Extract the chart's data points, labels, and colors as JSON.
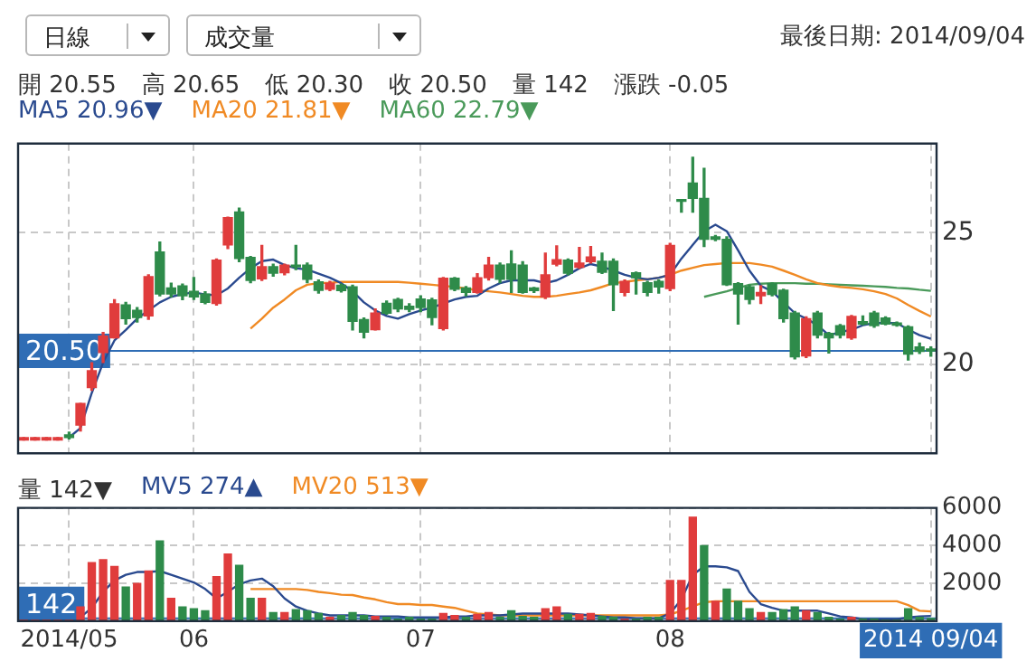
{
  "chart_data": [
    {
      "type": "candlestick",
      "annotations": [
        "日線",
        "成交量",
        "最後日期: 2014/09/04",
        "開 20.55",
        "高 20.65",
        "低 20.30",
        "收 20.50",
        "量 142",
        "漲跌 -0.05"
      ],
      "categories": [
        null,
        null,
        null,
        null,
        null,
        null,
        null,
        null,
        null,
        null,
        null,
        null,
        null,
        null,
        null,
        null,
        null,
        null,
        null,
        null,
        null,
        null,
        null,
        null,
        null,
        null,
        null,
        null,
        null,
        null,
        null,
        null,
        null,
        null,
        null,
        null,
        null,
        null,
        null,
        null,
        null,
        null,
        null,
        null,
        null,
        null,
        null,
        null,
        null,
        null,
        null,
        null,
        null,
        null,
        null,
        null,
        null,
        null,
        null,
        null,
        null,
        null,
        null,
        null,
        null,
        null,
        null,
        null,
        null,
        null,
        null,
        null,
        null,
        null,
        null,
        null,
        null,
        null,
        null,
        null,
        null
      ],
      "tick_labels": "y",
      "ohlc": [
        [
          17.1,
          17.2,
          17.1,
          17.2
        ],
        [
          17.1,
          17.2,
          17.1,
          17.2
        ],
        [
          17.1,
          17.2,
          17.1,
          17.2
        ],
        [
          17.1,
          17.2,
          17.1,
          17.2
        ],
        [
          17.3,
          17.4,
          17.15,
          17.2
        ],
        [
          17.67,
          18.5,
          17.45,
          18.5
        ],
        [
          19.1,
          20.05,
          19.0,
          19.75
        ],
        [
          20.44,
          21.2,
          20.06,
          21.06
        ],
        [
          21.0,
          22.45,
          21.0,
          22.3
        ],
        [
          22.25,
          22.35,
          21.52,
          21.73
        ],
        [
          22.05,
          22.15,
          21.6,
          21.77
        ],
        [
          21.83,
          23.4,
          21.7,
          23.33
        ],
        [
          24.27,
          24.65,
          22.6,
          22.67
        ],
        [
          22.9,
          23.08,
          22.56,
          22.67
        ],
        [
          22.98,
          23.05,
          22.45,
          22.6
        ],
        [
          22.77,
          23.3,
          22.46,
          22.56
        ],
        [
          22.67,
          22.75,
          22.3,
          22.35
        ],
        [
          22.31,
          24.0,
          22.25,
          23.96
        ],
        [
          24.54,
          25.6,
          24.4,
          25.58
        ],
        [
          25.79,
          25.94,
          23.9,
          24.02
        ],
        [
          24.06,
          24.1,
          23.1,
          23.19
        ],
        [
          23.25,
          24.52,
          23.19,
          23.71
        ],
        [
          23.71,
          23.8,
          23.35,
          23.46
        ],
        [
          23.48,
          23.8,
          23.4,
          23.77
        ],
        [
          23.75,
          24.52,
          23.6,
          23.7
        ],
        [
          23.77,
          23.85,
          23.1,
          23.23
        ],
        [
          23.13,
          23.2,
          22.7,
          22.81
        ],
        [
          22.85,
          23.15,
          22.8,
          23.08
        ],
        [
          23.0,
          23.05,
          22.75,
          22.8
        ],
        [
          22.94,
          23.0,
          21.3,
          21.63
        ],
        [
          21.69,
          21.75,
          21.0,
          21.21
        ],
        [
          21.31,
          22.1,
          21.3,
          21.94
        ],
        [
          22.31,
          22.4,
          21.9,
          21.94
        ],
        [
          22.46,
          22.5,
          22.0,
          22.1
        ],
        [
          22.2,
          22.3,
          22.0,
          22.08
        ],
        [
          22.48,
          22.6,
          22.0,
          22.15
        ],
        [
          22.44,
          22.5,
          21.5,
          21.77
        ],
        [
          21.35,
          23.3,
          21.3,
          23.27
        ],
        [
          23.27,
          23.3,
          22.8,
          22.85
        ],
        [
          22.9,
          22.95,
          22.6,
          22.73
        ],
        [
          22.73,
          23.44,
          22.7,
          23.29
        ],
        [
          23.29,
          24.06,
          23.2,
          23.77
        ],
        [
          23.77,
          23.85,
          23.1,
          23.23
        ],
        [
          23.81,
          24.31,
          22.73,
          23.23
        ],
        [
          23.77,
          23.9,
          22.7,
          22.73
        ],
        [
          22.9,
          22.92,
          22.73,
          22.8
        ],
        [
          22.56,
          24.23,
          22.5,
          23.4
        ],
        [
          23.81,
          24.5,
          23.75,
          23.98
        ],
        [
          23.96,
          24.0,
          23.4,
          23.46
        ],
        [
          23.69,
          24.44,
          23.65,
          23.85
        ],
        [
          23.9,
          24.48,
          23.85,
          24.08
        ],
        [
          23.92,
          24.23,
          23.45,
          23.5
        ],
        [
          23.92,
          24.0,
          22.04,
          23.02
        ],
        [
          22.73,
          23.2,
          22.6,
          23.15
        ],
        [
          23.48,
          23.5,
          22.67,
          23.29
        ],
        [
          23.1,
          23.15,
          22.6,
          22.73
        ],
        [
          23.15,
          23.2,
          22.7,
          22.94
        ],
        [
          22.88,
          24.6,
          22.8,
          24.52
        ],
        [
          26.27,
          26.27,
          25.79,
          26.2
        ],
        [
          26.9,
          27.88,
          25.79,
          26.31
        ],
        [
          26.31,
          27.46,
          24.48,
          24.75
        ],
        [
          24.85,
          24.9,
          24.7,
          24.75
        ],
        [
          24.75,
          24.85,
          23.0,
          23.02
        ],
        [
          23.06,
          23.1,
          21.52,
          22.67
        ],
        [
          22.94,
          23.0,
          22.3,
          22.46
        ],
        [
          22.6,
          22.98,
          22.31,
          22.73
        ],
        [
          23.06,
          23.1,
          22.6,
          22.65
        ],
        [
          22.81,
          22.85,
          21.6,
          21.73
        ],
        [
          21.94,
          22.0,
          20.2,
          20.27
        ],
        [
          20.31,
          21.8,
          20.25,
          21.73
        ],
        [
          21.94,
          22.0,
          21.0,
          21.1
        ],
        [
          21.17,
          21.2,
          20.42,
          21.0
        ],
        [
          21.46,
          21.5,
          21.0,
          21.1
        ],
        [
          21.0,
          21.85,
          20.95,
          21.81
        ],
        [
          21.62,
          21.83,
          21.5,
          21.52
        ],
        [
          21.94,
          22.0,
          21.4,
          21.46
        ],
        [
          21.75,
          21.8,
          21.5,
          21.52
        ],
        [
          21.56,
          21.6,
          21.45,
          21.48
        ],
        [
          21.42,
          21.45,
          20.15,
          20.38
        ],
        [
          20.65,
          20.8,
          20.4,
          20.48
        ],
        [
          20.55,
          20.65,
          20.3,
          20.5
        ]
      ],
      "colors": [
        "#e03c3c",
        "#e03c3c",
        "#e03c3c",
        "#e03c3c",
        "#2e8b4a",
        "#e03c3c",
        "#e03c3c",
        "#e03c3c",
        "#e03c3c",
        "#2e8b4a",
        "#2e8b4a",
        "#e03c3c",
        "#2e8b4a",
        "#2e8b4a",
        "#2e8b4a",
        "#2e8b4a",
        "#2e8b4a",
        "#e03c3c",
        "#e03c3c",
        "#2e8b4a",
        "#2e8b4a",
        "#e03c3c",
        "#2e8b4a",
        "#e03c3c",
        "#2e8b4a",
        "#2e8b4a",
        "#2e8b4a",
        "#e03c3c",
        "#2e8b4a",
        "#2e8b4a",
        "#2e8b4a",
        "#e03c3c",
        "#2e8b4a",
        "#2e8b4a",
        "#2e8b4a",
        "#2e8b4a",
        "#2e8b4a",
        "#e03c3c",
        "#2e8b4a",
        "#2e8b4a",
        "#e03c3c",
        "#e03c3c",
        "#2e8b4a",
        "#2e8b4a",
        "#2e8b4a",
        "#2e8b4a",
        "#e03c3c",
        "#e03c3c",
        "#2e8b4a",
        "#e03c3c",
        "#e03c3c",
        "#2e8b4a",
        "#2e8b4a",
        "#e03c3c",
        "#2e8b4a",
        "#2e8b4a",
        "#2e8b4a",
        "#e03c3c",
        "#2e8b4a",
        "#2e8b4a",
        "#2e8b4a",
        "#2e8b4a",
        "#2e8b4a",
        "#2e8b4a",
        "#2e8b4a",
        "#e03c3c",
        "#2e8b4a",
        "#2e8b4a",
        "#2e8b4a",
        "#e03c3c",
        "#2e8b4a",
        "#2e8b4a",
        "#2e8b4a",
        "#e03c3c",
        "#2e8b4a",
        "#2e8b4a",
        "#2e8b4a",
        "#2e8b4a",
        "#2e8b4a",
        "#2e8b4a",
        "#2e8b4a"
      ],
      "series": [
        {
          "name": "MA5 20.96▼",
          "type": "line",
          "color": "#2a4a8f",
          "values": [
            null,
            null,
            null,
            null,
            17.2,
            17.56,
            18.9,
            20.06,
            20.9,
            21.3,
            21.73,
            22.04,
            22.35,
            22.56,
            22.67,
            22.73,
            22.65,
            22.62,
            22.88,
            23.29,
            23.65,
            23.92,
            23.98,
            23.77,
            23.65,
            23.6,
            23.44,
            23.29,
            23.08,
            22.77,
            22.35,
            22.04,
            21.83,
            21.73,
            21.9,
            22.04,
            22.15,
            22.31,
            22.46,
            22.56,
            22.6,
            22.88,
            23.08,
            23.19,
            23.19,
            23.19,
            23.08,
            23.19,
            23.4,
            23.65,
            23.81,
            23.71,
            23.56,
            23.4,
            23.29,
            23.23,
            23.29,
            23.4,
            24.02,
            24.54,
            25.06,
            25.31,
            25.06,
            24.33,
            23.56,
            22.98,
            22.77,
            22.35,
            21.94,
            21.73,
            21.48,
            21.1,
            21.21,
            21.31,
            21.48,
            21.56,
            21.56,
            21.56,
            21.31,
            21.1,
            20.96
          ]
        },
        {
          "name": "MA20 21.81▼",
          "type": "line",
          "color": "#f08a24",
          "values": [
            null,
            null,
            null,
            null,
            null,
            null,
            null,
            null,
            null,
            null,
            null,
            null,
            null,
            null,
            null,
            null,
            null,
            null,
            null,
            null,
            21.35,
            21.73,
            22.15,
            22.46,
            22.81,
            23.02,
            23.08,
            23.1,
            23.13,
            23.13,
            23.13,
            23.13,
            23.13,
            23.13,
            23.1,
            23.06,
            23.02,
            22.98,
            22.94,
            22.88,
            22.81,
            22.77,
            22.73,
            22.67,
            22.6,
            22.56,
            22.56,
            22.6,
            22.67,
            22.73,
            22.81,
            22.94,
            23.08,
            23.13,
            23.19,
            23.23,
            23.29,
            23.4,
            23.56,
            23.67,
            23.77,
            23.81,
            23.85,
            23.85,
            23.85,
            23.79,
            23.71,
            23.56,
            23.4,
            23.23,
            23.08,
            23.0,
            22.94,
            22.9,
            22.85,
            22.77,
            22.67,
            22.5,
            22.25,
            22.02,
            21.81
          ]
        },
        {
          "name": "MA60 22.79▼",
          "type": "line",
          "color": "#4a9a5a",
          "values": [
            null,
            null,
            null,
            null,
            null,
            null,
            null,
            null,
            null,
            null,
            null,
            null,
            null,
            null,
            null,
            null,
            null,
            null,
            null,
            null,
            null,
            null,
            null,
            null,
            null,
            null,
            null,
            null,
            null,
            null,
            null,
            null,
            null,
            null,
            null,
            null,
            null,
            null,
            null,
            null,
            null,
            null,
            null,
            null,
            null,
            null,
            null,
            null,
            null,
            null,
            null,
            null,
            null,
            null,
            null,
            null,
            null,
            null,
            null,
            null,
            22.56,
            22.67,
            22.77,
            22.9,
            23.02,
            23.06,
            23.08,
            23.08,
            23.08,
            23.06,
            23.06,
            23.04,
            23.02,
            23.0,
            22.98,
            22.96,
            22.94,
            22.9,
            22.88,
            22.83,
            22.79
          ]
        }
      ],
      "ylim": [
        16.6,
        28.4
      ],
      "yticks": [
        20,
        25
      ],
      "grid": true,
      "legend": "top left",
      "marker": "none",
      "ref_lines": [
        {
          "axis": "y",
          "value": 20.5,
          "label": "20.50",
          "color": "#2f6db5"
        }
      ]
    },
    {
      "type": "bar",
      "categories": [
        null,
        null,
        null,
        null,
        "2014/05",
        null,
        null,
        null,
        null,
        null,
        null,
        null,
        null,
        null,
        null,
        "06",
        null,
        null,
        null,
        null,
        null,
        null,
        null,
        null,
        null,
        null,
        null,
        null,
        null,
        null,
        null,
        null,
        null,
        null,
        null,
        "07",
        null,
        null,
        null,
        null,
        null,
        null,
        null,
        null,
        null,
        null,
        null,
        null,
        null,
        null,
        null,
        null,
        null,
        null,
        null,
        null,
        null,
        "08",
        null,
        null,
        null,
        null,
        null,
        null,
        null,
        null,
        null,
        null,
        null,
        null,
        null,
        null,
        null,
        null,
        null,
        null,
        null,
        null,
        null,
        null,
        "2014 09/04"
      ],
      "series": [
        {
          "name": "量 142▼",
          "type": "bar",
          "values": [
            50,
            50,
            50,
            50,
            50,
            750,
            3100,
            3250,
            2900,
            1800,
            2000,
            2650,
            4250,
            1200,
            750,
            650,
            550,
            2350,
            3550,
            2950,
            1200,
            1200,
            450,
            450,
            600,
            550,
            400,
            200,
            300,
            450,
            300,
            250,
            200,
            100,
            200,
            100,
            100,
            400,
            300,
            200,
            350,
            450,
            200,
            550,
            250,
            200,
            650,
            750,
            350,
            350,
            400,
            250,
            200,
            100,
            100,
            200,
            200,
            2150,
            2150,
            5500,
            4000,
            1050,
            1700,
            1050,
            650,
            450,
            450,
            600,
            750,
            550,
            450,
            200,
            100,
            200,
            100,
            100,
            50,
            50,
            650,
            200,
            142
          ],
          "colors": [
            "#e03c3c",
            "#e03c3c",
            "#e03c3c",
            "#e03c3c",
            "#e03c3c",
            "#e03c3c",
            "#e03c3c",
            "#e03c3c",
            "#e03c3c",
            "#2e8b4a",
            "#e03c3c",
            "#e03c3c",
            "#2e8b4a",
            "#e03c3c",
            "#2e8b4a",
            "#2e8b4a",
            "#2e8b4a",
            "#e03c3c",
            "#e03c3c",
            "#2e8b4a",
            "#2e8b4a",
            "#e03c3c",
            "#2e8b4a",
            "#e03c3c",
            "#2e8b4a",
            "#2e8b4a",
            "#2e8b4a",
            "#e03c3c",
            "#2e8b4a",
            "#2e8b4a",
            "#2e8b4a",
            "#e03c3c",
            "#2e8b4a",
            "#2e8b4a",
            "#2e8b4a",
            "#2e8b4a",
            "#2e8b4a",
            "#e03c3c",
            "#e03c3c",
            "#2e8b4a",
            "#e03c3c",
            "#e03c3c",
            "#2e8b4a",
            "#2e8b4a",
            "#2e8b4a",
            "#2e8b4a",
            "#e03c3c",
            "#e03c3c",
            "#2e8b4a",
            "#e03c3c",
            "#e03c3c",
            "#2e8b4a",
            "#2e8b4a",
            "#e03c3c",
            "#2e8b4a",
            "#2e8b4a",
            "#2e8b4a",
            "#e03c3c",
            "#e03c3c",
            "#e03c3c",
            "#2e8b4a",
            "#e03c3c",
            "#2e8b4a",
            "#2e8b4a",
            "#2e8b4a",
            "#e03c3c",
            "#2e8b4a",
            "#2e8b4a",
            "#2e8b4a",
            "#e03c3c",
            "#2e8b4a",
            "#2e8b4a",
            "#2e8b4a",
            "#e03c3c",
            "#2e8b4a",
            "#2e8b4a",
            "#2e8b4a",
            "#2e8b4a",
            "#2e8b4a",
            "#2e8b4a",
            "#2e8b4a"
          ]
        },
        {
          "name": "MV5 274▲",
          "type": "line",
          "color": "#2a4a8f",
          "values": [
            null,
            null,
            null,
            null,
            null,
            200,
            700,
            1550,
            2150,
            2450,
            2600,
            2600,
            2650,
            2450,
            2250,
            2050,
            1700,
            1200,
            1550,
            1950,
            2150,
            2250,
            1850,
            1200,
            770,
            550,
            400,
            300,
            300,
            300,
            300,
            250,
            250,
            250,
            200,
            200,
            200,
            200,
            250,
            250,
            300,
            300,
            300,
            350,
            400,
            400,
            400,
            400,
            400,
            350,
            300,
            250,
            200,
            200,
            150,
            150,
            150,
            400,
            1150,
            2450,
            2900,
            2900,
            2850,
            2650,
            1550,
            900,
            700,
            550,
            550,
            550,
            550,
            400,
            250,
            200,
            100,
            100,
            100,
            100,
            200,
            250,
            274
          ]
        },
        {
          "name": "MV20 513▼",
          "type": "line",
          "color": "#f08a24",
          "values": [
            null,
            null,
            null,
            null,
            null,
            null,
            null,
            null,
            null,
            null,
            null,
            null,
            null,
            null,
            null,
            null,
            null,
            null,
            null,
            null,
            1700,
            1700,
            1700,
            1700,
            1700,
            1650,
            1550,
            1480,
            1400,
            1380,
            1250,
            1150,
            1000,
            900,
            900,
            850,
            850,
            770,
            700,
            550,
            400,
            350,
            300,
            300,
            300,
            300,
            300,
            300,
            300,
            300,
            300,
            300,
            300,
            300,
            300,
            300,
            300,
            350,
            550,
            770,
            1000,
            1050,
            1050,
            1050,
            1050,
            1050,
            1050,
            1050,
            1050,
            1050,
            1050,
            1050,
            1050,
            1050,
            1050,
            1050,
            1050,
            1050,
            850,
            550,
            513
          ]
        }
      ],
      "ylim": [
        0,
        6000
      ],
      "yticks": [
        2000,
        4000,
        6000
      ],
      "grid": true,
      "legend": "top left",
      "marker": "none",
      "ref_lines": [
        {
          "axis": "y",
          "value": 142,
          "label": "142",
          "color": "#2f6db5"
        }
      ]
    }
  ]
}
